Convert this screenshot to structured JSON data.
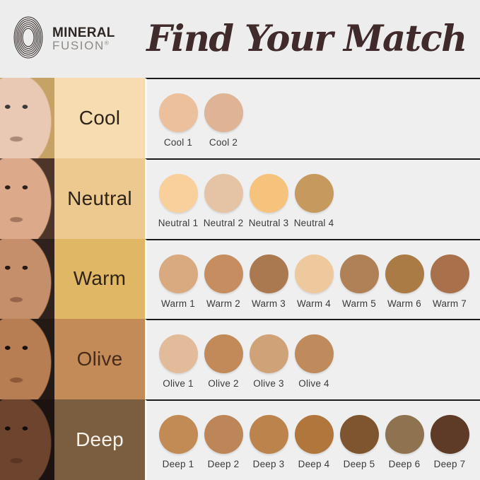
{
  "header": {
    "brand_line1": "MINERAL",
    "brand_line2": "FUSION",
    "registered_mark": "®",
    "title": "Find Your Match",
    "title_color": "#402a2b",
    "logo_color": "#2f2724",
    "background": "#ededed"
  },
  "divider_color": "#1b1b1b",
  "swatch_area_background": "#efefef",
  "rows": [
    {
      "label": "Cool",
      "label_bg": "#f7dcb2",
      "label_color": "#30241a",
      "photo": {
        "bg": "#96968f",
        "skin": "#e9c9b3",
        "hair": "#c7a266",
        "feature": "#3c3a38"
      },
      "swatches": [
        {
          "name": "Cool 1",
          "color": "#ecc09c"
        },
        {
          "name": "Cool 2",
          "color": "#dfb496"
        }
      ]
    },
    {
      "label": "Neutral",
      "label_bg": "#ecc98e",
      "label_color": "#30241a",
      "photo": {
        "bg": "#c7a584",
        "skin": "#dcaa8a",
        "hair": "#4e352a",
        "feature": "#2e2019"
      },
      "swatches": [
        {
          "name": "Neutral 1",
          "color": "#f9d09c"
        },
        {
          "name": "Neutral 2",
          "color": "#e4c4a4"
        },
        {
          "name": "Neutral 3",
          "color": "#f6c37c"
        },
        {
          "name": "Neutral 4",
          "color": "#c69a5f"
        }
      ]
    },
    {
      "label": "Warm",
      "label_bg": "#dfb765",
      "label_color": "#30241a",
      "photo": {
        "bg": "#d9c3ab",
        "skin": "#c68f6b",
        "hair": "#2f211b",
        "feature": "#241813"
      },
      "swatches": [
        {
          "name": "Warm 1",
          "color": "#d9aa80"
        },
        {
          "name": "Warm 2",
          "color": "#c68e60"
        },
        {
          "name": "Warm 3",
          "color": "#aa7950"
        },
        {
          "name": "Warm 4",
          "color": "#eec99e"
        },
        {
          "name": "Warm 5",
          "color": "#b08156"
        },
        {
          "name": "Warm 6",
          "color": "#aa7b44"
        },
        {
          "name": "Warm 7",
          "color": "#a9714b"
        }
      ]
    },
    {
      "label": "Olive",
      "label_bg": "#c28b58",
      "label_color": "#4a2b18",
      "photo": {
        "bg": "#b79566",
        "skin": "#b67e52",
        "hair": "#241a15",
        "feature": "#17100d"
      },
      "swatches": [
        {
          "name": "Olive 1",
          "color": "#e2bc9a"
        },
        {
          "name": "Olive 2",
          "color": "#c18a58"
        },
        {
          "name": "Olive 3",
          "color": "#d0a277"
        },
        {
          "name": "Olive 4",
          "color": "#c08b5c"
        }
      ]
    },
    {
      "label": "Deep",
      "label_bg": "#7b5d40",
      "label_color": "#f7f2ea",
      "photo": {
        "bg": "#cbb89e",
        "skin": "#6d452f",
        "hair": "#1c1310",
        "feature": "#120c09"
      },
      "swatches": [
        {
          "name": "Deep 1",
          "color": "#c28b55"
        },
        {
          "name": "Deep 2",
          "color": "#bd8659"
        },
        {
          "name": "Deep 3",
          "color": "#bc834d"
        },
        {
          "name": "Deep 4",
          "color": "#b0763c"
        },
        {
          "name": "Deep 5",
          "color": "#7f5530"
        },
        {
          "name": "Deep 6",
          "color": "#8f7350"
        },
        {
          "name": "Deep 7",
          "color": "#5d3b27"
        }
      ]
    }
  ],
  "chart_data": {
    "type": "table",
    "title": "Find Your Match",
    "categories": [
      "Cool",
      "Neutral",
      "Warm",
      "Olive",
      "Deep"
    ],
    "series": [
      {
        "name": "Cool",
        "shades": [
          "Cool 1",
          "Cool 2"
        ],
        "colors": [
          "#ecc09c",
          "#dfb496"
        ]
      },
      {
        "name": "Neutral",
        "shades": [
          "Neutral 1",
          "Neutral 2",
          "Neutral 3",
          "Neutral 4"
        ],
        "colors": [
          "#f9d09c",
          "#e4c4a4",
          "#f6c37c",
          "#c69a5f"
        ]
      },
      {
        "name": "Warm",
        "shades": [
          "Warm 1",
          "Warm 2",
          "Warm 3",
          "Warm 4",
          "Warm 5",
          "Warm 6",
          "Warm 7"
        ],
        "colors": [
          "#d9aa80",
          "#c68e60",
          "#aa7950",
          "#eec99e",
          "#b08156",
          "#aa7b44",
          "#a9714b"
        ]
      },
      {
        "name": "Olive",
        "shades": [
          "Olive 1",
          "Olive 2",
          "Olive 3",
          "Olive 4"
        ],
        "colors": [
          "#e2bc9a",
          "#c18a58",
          "#d0a277",
          "#c08b5c"
        ]
      },
      {
        "name": "Deep",
        "shades": [
          "Deep 1",
          "Deep 2",
          "Deep 3",
          "Deep 4",
          "Deep 5",
          "Deep 6",
          "Deep 7"
        ],
        "colors": [
          "#c28b55",
          "#bd8659",
          "#bc834d",
          "#b0763c",
          "#7f5530",
          "#8f7350",
          "#5d3b27"
        ]
      }
    ]
  }
}
